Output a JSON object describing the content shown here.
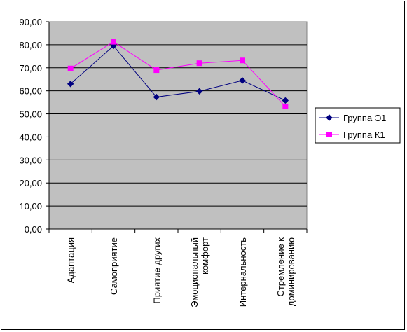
{
  "chart_data": {
    "type": "line",
    "categories": [
      [
        "Адаптация"
      ],
      [
        "Самоприятие"
      ],
      [
        "Приятие других"
      ],
      [
        "Эмоциональный",
        "комфорт"
      ],
      [
        "Интернальность"
      ],
      [
        "Стремление к",
        "доминированию"
      ]
    ],
    "series": [
      {
        "name": "Группа Э1",
        "color": "#000080",
        "marker": "diamond",
        "values": [
          63.0,
          79.5,
          57.3,
          59.8,
          64.5,
          55.8
        ]
      },
      {
        "name": "Группа К1",
        "color": "#ff00ff",
        "marker": "square",
        "values": [
          69.7,
          81.3,
          69.0,
          72.0,
          73.2,
          53.2
        ]
      }
    ],
    "yticks": [
      "0,00",
      "10,00",
      "20,00",
      "30,00",
      "40,00",
      "50,00",
      "60,00",
      "70,00",
      "80,00",
      "90,00"
    ],
    "ylim": [
      0,
      90
    ],
    "plot_background": "#c0c0c0",
    "grid": true,
    "legend_position": "right"
  }
}
